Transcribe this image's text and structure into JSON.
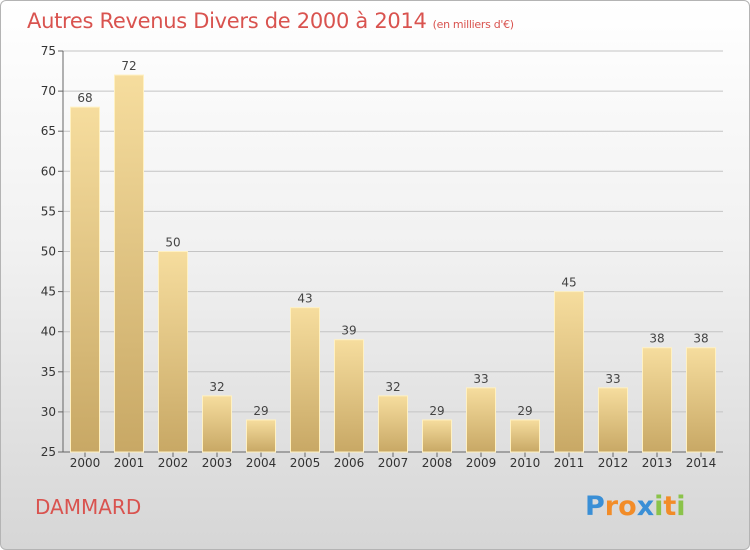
{
  "chart_data": {
    "type": "bar",
    "title": "Autres Revenus Divers de 2000 à 2014",
    "subtitle": "(en milliers d'€)",
    "categories": [
      "2000",
      "2001",
      "2002",
      "2003",
      "2004",
      "2005",
      "2006",
      "2007",
      "2008",
      "2009",
      "2010",
      "2011",
      "2012",
      "2013",
      "2014"
    ],
    "values": [
      68,
      72,
      50,
      32,
      29,
      43,
      39,
      32,
      29,
      33,
      29,
      45,
      33,
      38,
      38
    ],
    "ylim": [
      25,
      75
    ],
    "yticks": [
      25,
      30,
      35,
      40,
      45,
      50,
      55,
      60,
      65,
      70,
      75
    ],
    "grid": true,
    "bar_color": "#e8c882"
  },
  "commune": "DAMMARD",
  "logo": {
    "letters": [
      "P",
      "r",
      "o",
      "x",
      "i",
      "t",
      "i"
    ],
    "colors": [
      "#3a8fd6",
      "#f28c28",
      "#f28c28",
      "#3a8fd6",
      "#8bc34a",
      "#f28c28",
      "#8bc34a"
    ]
  }
}
